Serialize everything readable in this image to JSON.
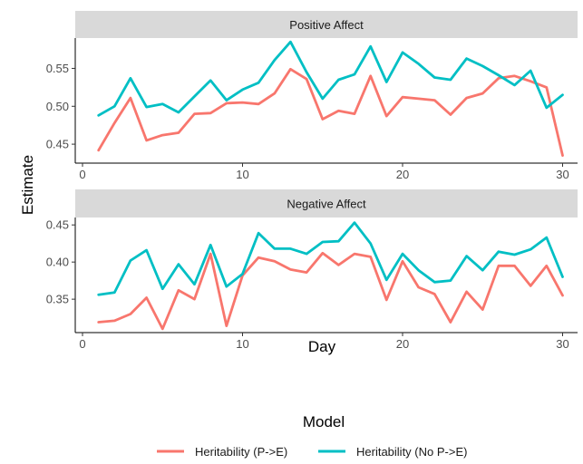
{
  "chart_data": {
    "type": "line",
    "xlabel": "Day",
    "ylabel": "Estimate",
    "xlim": [
      0,
      31
    ],
    "xticks": [
      "0",
      "10",
      "20",
      "30"
    ],
    "legend": {
      "title": "Model",
      "position": "bottom",
      "entries": [
        {
          "label": "Heritability (P->E)",
          "color": "#F8766D"
        },
        {
          "label": "Heritability (No P->E)",
          "color": "#00BFC4"
        }
      ]
    },
    "x": [
      1,
      2,
      3,
      4,
      5,
      6,
      7,
      8,
      9,
      10,
      11,
      12,
      13,
      14,
      15,
      16,
      17,
      18,
      19,
      20,
      21,
      22,
      23,
      24,
      25,
      26,
      27,
      28,
      29,
      30
    ],
    "panels": [
      {
        "title": "Positive Affect",
        "ylim": [
          0.425,
          0.59
        ],
        "yticks": [
          "0.45",
          "0.50",
          "0.55"
        ],
        "series": [
          {
            "name": "Heritability (P->E)",
            "color": "#F8766D",
            "values": [
              0.442,
              0.478,
              0.511,
              0.455,
              0.462,
              0.465,
              0.49,
              0.491,
              0.504,
              0.505,
              0.503,
              0.517,
              0.549,
              0.536,
              0.483,
              0.494,
              0.49,
              0.54,
              0.487,
              0.512,
              0.51,
              0.508,
              0.489,
              0.511,
              0.517,
              0.537,
              0.54,
              0.533,
              0.525,
              0.435
            ]
          },
          {
            "name": "Heritability (No P->E)",
            "color": "#00BFC4",
            "values": [
              0.488,
              0.5,
              0.537,
              0.499,
              0.503,
              0.492,
              0.513,
              0.534,
              0.508,
              0.522,
              0.531,
              0.561,
              0.585,
              0.545,
              0.51,
              0.535,
              0.542,
              0.579,
              0.532,
              0.571,
              0.556,
              0.538,
              0.535,
              0.563,
              0.553,
              0.541,
              0.528,
              0.547,
              0.498,
              0.515
            ]
          }
        ]
      },
      {
        "title": "Negative Affect",
        "ylim": [
          0.305,
          0.46
        ],
        "yticks": [
          "0.35",
          "0.40",
          "0.45"
        ],
        "series": [
          {
            "name": "Heritability (P->E)",
            "color": "#F8766D",
            "values": [
              0.319,
              0.321,
              0.33,
              0.352,
              0.31,
              0.362,
              0.35,
              0.411,
              0.314,
              0.382,
              0.406,
              0.401,
              0.39,
              0.386,
              0.412,
              0.396,
              0.411,
              0.407,
              0.349,
              0.401,
              0.366,
              0.357,
              0.319,
              0.36,
              0.336,
              0.395,
              0.395,
              0.368,
              0.395,
              0.355
            ]
          },
          {
            "name": "Heritability (No P->E)",
            "color": "#00BFC4",
            "values": [
              0.356,
              0.359,
              0.402,
              0.416,
              0.364,
              0.397,
              0.37,
              0.423,
              0.367,
              0.384,
              0.439,
              0.418,
              0.418,
              0.411,
              0.427,
              0.428,
              0.453,
              0.425,
              0.376,
              0.411,
              0.389,
              0.373,
              0.375,
              0.408,
              0.389,
              0.414,
              0.41,
              0.417,
              0.433,
              0.38
            ]
          }
        ]
      }
    ]
  }
}
